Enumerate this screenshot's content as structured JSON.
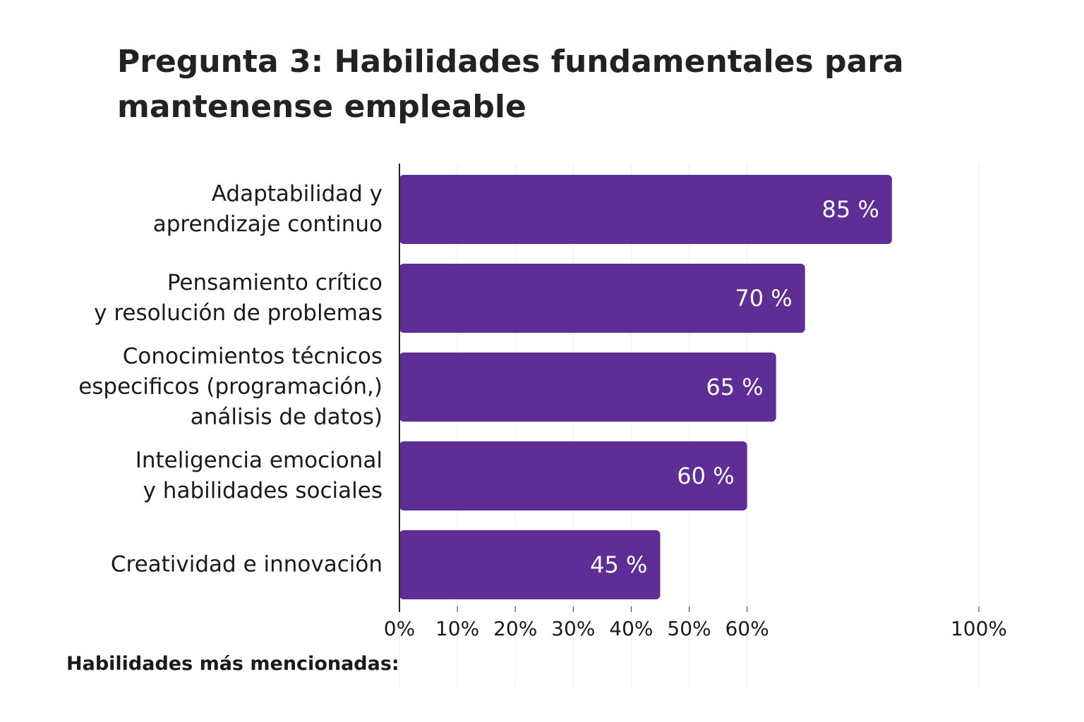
{
  "chart_data": {
    "type": "bar",
    "orientation": "horizontal",
    "title": "Pregunta 3: Habilidades fundamentales para mantenense empleable",
    "categories": [
      "Adaptabilidad y\naprendizaje continuo",
      "Pensamiento crítico\ny resolución de problemas",
      "Conocimientos técnicos\nespecificos (programación,)\nanálisis de datos)",
      "Inteligencia emocional\ny habilidades sociales",
      "Creatividad e innovación"
    ],
    "values": [
      85,
      70,
      65,
      60,
      45
    ],
    "value_labels": [
      "85 %",
      "70 %",
      "65 %",
      "60 %",
      "45 %"
    ],
    "color": "#5e2d96",
    "xlim": [
      0,
      100
    ],
    "xticks": [
      {
        "value": 0,
        "label": "0%"
      },
      {
        "value": 10,
        "label": "10%"
      },
      {
        "value": 20,
        "label": "20%"
      },
      {
        "value": 30,
        "label": "30%"
      },
      {
        "value": 40,
        "label": "40%"
      },
      {
        "value": 50,
        "label": "50%"
      },
      {
        "value": 60,
        "label": "60%"
      },
      {
        "value": 100,
        "label": "100%"
      }
    ],
    "grid": true,
    "annotation": "Habilidades más mencionadas:"
  }
}
